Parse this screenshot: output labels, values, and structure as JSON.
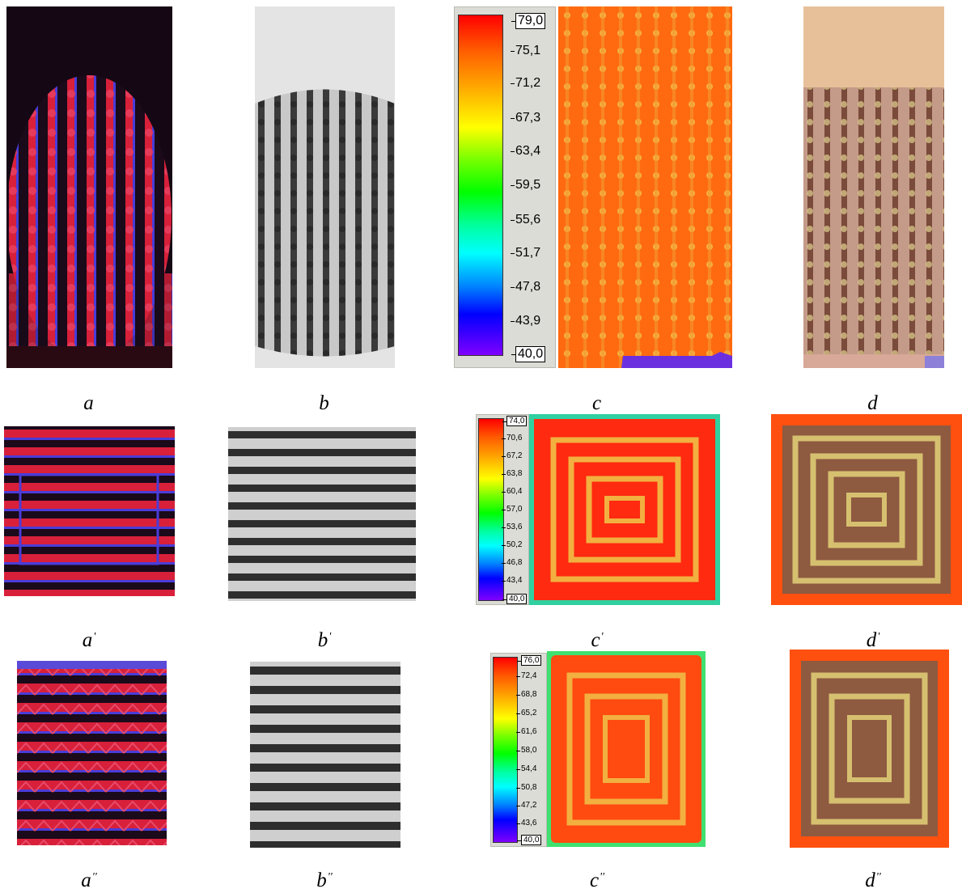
{
  "rows": [
    {
      "labels": {
        "a": "a",
        "b": "b",
        "c": "c",
        "d": "d"
      },
      "label_mark": "",
      "colorbar_ticks": [
        "79,0",
        "75,1",
        "71,2",
        "67,3",
        "63,4",
        "59,5",
        "55,6",
        "51,7",
        "47,8",
        "43,9",
        "40,0"
      ]
    },
    {
      "labels": {
        "a": "a",
        "b": "b",
        "c": "c",
        "d": "d"
      },
      "label_mark": "'",
      "colorbar_ticks": [
        "74,0",
        "70,6",
        "67,2",
        "63,8",
        "60,4",
        "57,0",
        "53,6",
        "50,2",
        "46,8",
        "43,4",
        "40,0"
      ]
    },
    {
      "labels": {
        "a": "a",
        "b": "b",
        "c": "c",
        "d": "d"
      },
      "label_mark": "''",
      "colorbar_ticks": [
        "76,0",
        "72,4",
        "68,8",
        "65,2",
        "61,6",
        "58,0",
        "54,4",
        "50,8",
        "47,2",
        "43,6",
        "40,0"
      ]
    }
  ],
  "colors": {
    "photo_bg": "#150814",
    "photo_stripe": "#d8203a",
    "photo_stripe_blue": "#4a3cd8",
    "gray_light": "#d8d8d8",
    "gray_dark": "#303030",
    "thermal_bg": "#ff6a10",
    "thermal_stripe": "#f2b040",
    "overlay_bg": "#c59a8a",
    "overlay_stripe": "#7a4a3a"
  }
}
